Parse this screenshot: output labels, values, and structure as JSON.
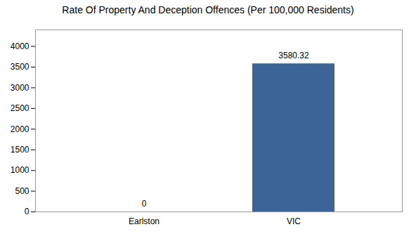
{
  "chart_data": {
    "type": "bar",
    "title": "Rate Of Property And Deception Offences (Per 100,000 Residents)",
    "categories": [
      "Earlston",
      "VIC"
    ],
    "values": [
      0,
      3580.32
    ],
    "color": "#3d6496",
    "ylim": [
      0,
      4400
    ],
    "yticks": [
      0,
      500,
      1000,
      1500,
      2000,
      2500,
      3000,
      3500,
      4000
    ],
    "grid": false,
    "data_labels": true
  }
}
